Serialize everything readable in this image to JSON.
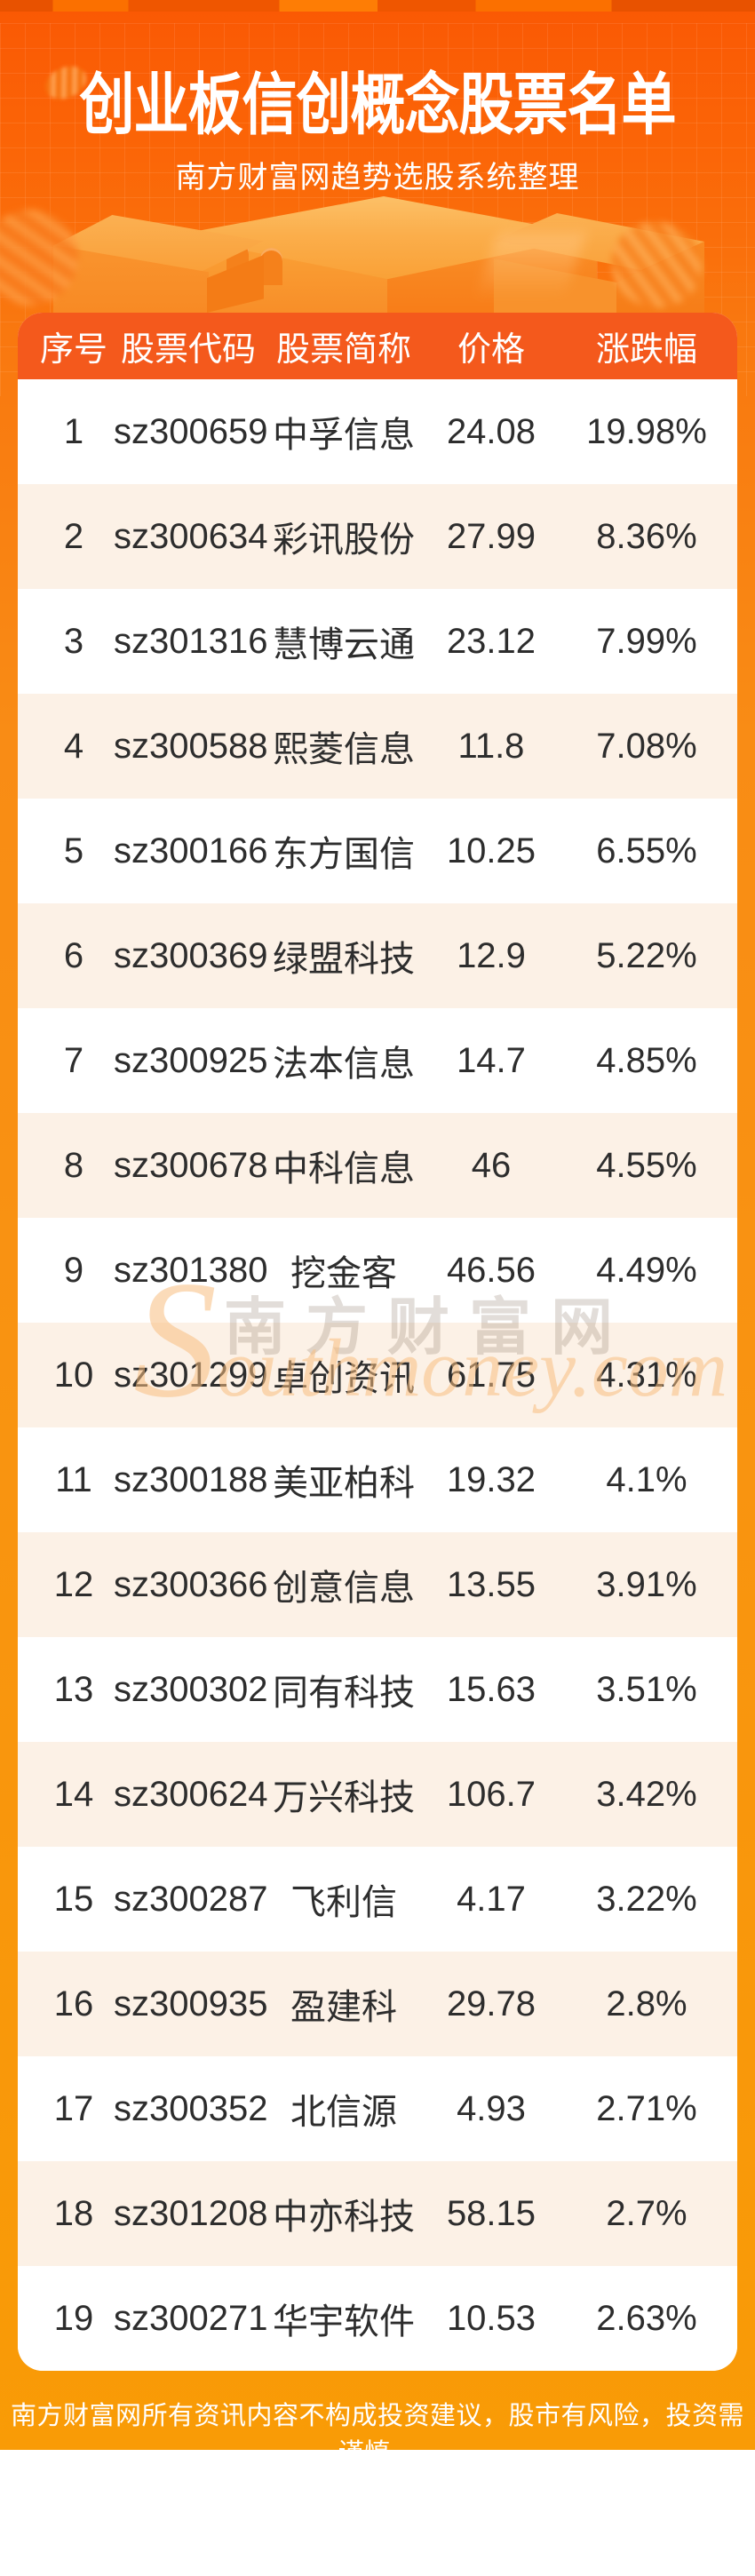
{
  "title": "创业板信创概念股票名单",
  "subtitle": "南方财富网趋势选股系统整理",
  "watermark": {
    "cn": "南方财富网",
    "en": "Southmoney.com"
  },
  "footer": "南方财富网所有资讯内容不构成投资建议，股市有风险，投资需谨慎。",
  "colors": {
    "bg_top": "#fa5804",
    "bg_bottom": "#f99b06",
    "header_bg": "#f4591c",
    "row_alt_bg": "#fcf1e6",
    "row_text": "#2d2d2d"
  },
  "table": {
    "headers": [
      "序号",
      "股票代码",
      "股票简称",
      "价格",
      "涨跌幅"
    ],
    "rows": [
      {
        "index": "1",
        "code": "sz300659",
        "name": "中孚信息",
        "price": "24.08",
        "change": "19.98%"
      },
      {
        "index": "2",
        "code": "sz300634",
        "name": "彩讯股份",
        "price": "27.99",
        "change": "8.36%"
      },
      {
        "index": "3",
        "code": "sz301316",
        "name": "慧博云通",
        "price": "23.12",
        "change": "7.99%"
      },
      {
        "index": "4",
        "code": "sz300588",
        "name": "熙菱信息",
        "price": "11.8",
        "change": "7.08%"
      },
      {
        "index": "5",
        "code": "sz300166",
        "name": "东方国信",
        "price": "10.25",
        "change": "6.55%"
      },
      {
        "index": "6",
        "code": "sz300369",
        "name": "绿盟科技",
        "price": "12.9",
        "change": "5.22%"
      },
      {
        "index": "7",
        "code": "sz300925",
        "name": "法本信息",
        "price": "14.7",
        "change": "4.85%"
      },
      {
        "index": "8",
        "code": "sz300678",
        "name": "中科信息",
        "price": "46",
        "change": "4.55%"
      },
      {
        "index": "9",
        "code": "sz301380",
        "name": "挖金客",
        "price": "46.56",
        "change": "4.49%"
      },
      {
        "index": "10",
        "code": "sz301299",
        "name": "卓创资讯",
        "price": "61.75",
        "change": "4.31%"
      },
      {
        "index": "11",
        "code": "sz300188",
        "name": "美亚柏科",
        "price": "19.32",
        "change": "4.1%"
      },
      {
        "index": "12",
        "code": "sz300366",
        "name": "创意信息",
        "price": "13.55",
        "change": "3.91%"
      },
      {
        "index": "13",
        "code": "sz300302",
        "name": "同有科技",
        "price": "15.63",
        "change": "3.51%"
      },
      {
        "index": "14",
        "code": "sz300624",
        "name": "万兴科技",
        "price": "106.7",
        "change": "3.42%"
      },
      {
        "index": "15",
        "code": "sz300287",
        "name": "飞利信",
        "price": "4.17",
        "change": "3.22%"
      },
      {
        "index": "16",
        "code": "sz300935",
        "name": "盈建科",
        "price": "29.78",
        "change": "2.8%"
      },
      {
        "index": "17",
        "code": "sz300352",
        "name": "北信源",
        "price": "4.93",
        "change": "2.71%"
      },
      {
        "index": "18",
        "code": "sz301208",
        "name": "中亦科技",
        "price": "58.15",
        "change": "2.7%"
      },
      {
        "index": "19",
        "code": "sz300271",
        "name": "华宇软件",
        "price": "10.53",
        "change": "2.63%"
      }
    ]
  }
}
